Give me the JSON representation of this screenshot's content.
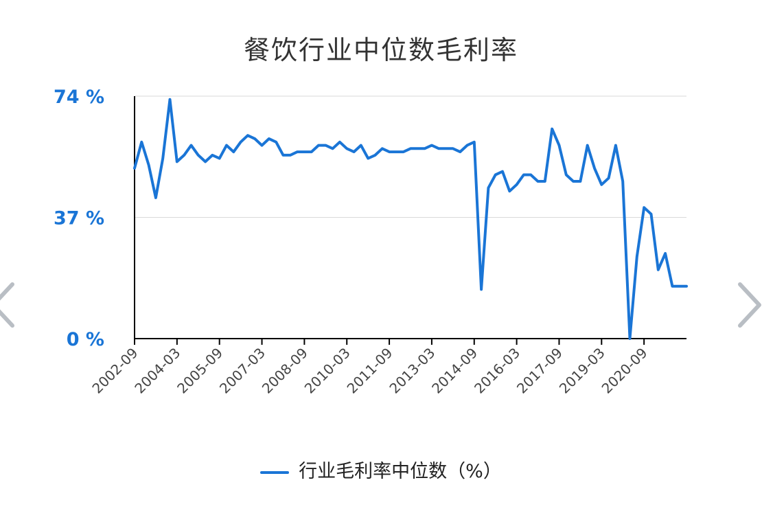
{
  "chart_data": {
    "type": "line",
    "title": "餐饮行业中位数毛利率",
    "x_ticks": [
      "2002-09",
      "2004-03",
      "2005-09",
      "2007-03",
      "2008-09",
      "2010-03",
      "2011-09",
      "2013-03",
      "2014-09",
      "2016-03",
      "2017-09",
      "2019-03",
      "2020-09"
    ],
    "y_ticks": [
      "0 %",
      "37 %",
      "74 %"
    ],
    "ylim": [
      0,
      74
    ],
    "grid": "horizontal",
    "legend_position": "bottom",
    "line_color": "#1a75d6",
    "series": [
      {
        "name": "行业毛利率中位数（%）",
        "x": [
          "2002-09",
          "2002-12",
          "2003-03",
          "2003-06",
          "2003-09",
          "2003-12",
          "2004-03",
          "2004-06",
          "2004-09",
          "2004-12",
          "2005-03",
          "2005-06",
          "2005-09",
          "2005-12",
          "2006-03",
          "2006-06",
          "2006-09",
          "2006-12",
          "2007-03",
          "2007-06",
          "2007-09",
          "2007-12",
          "2008-03",
          "2008-06",
          "2008-09",
          "2008-12",
          "2009-03",
          "2009-06",
          "2009-09",
          "2009-12",
          "2010-03",
          "2010-06",
          "2010-09",
          "2010-12",
          "2011-03",
          "2011-06",
          "2011-09",
          "2011-12",
          "2012-03",
          "2012-06",
          "2012-09",
          "2012-12",
          "2013-03",
          "2013-06",
          "2013-09",
          "2013-12",
          "2014-03",
          "2014-06",
          "2014-09",
          "2014-12",
          "2015-03",
          "2015-06",
          "2015-09",
          "2015-12",
          "2016-03",
          "2016-06",
          "2016-09",
          "2016-12",
          "2017-03",
          "2017-06",
          "2017-09",
          "2017-12",
          "2018-03",
          "2018-06",
          "2018-09",
          "2018-12",
          "2019-03",
          "2019-06",
          "2019-09",
          "2019-12",
          "2020-03",
          "2020-06",
          "2020-09",
          "2020-12",
          "2021-03",
          "2021-06",
          "2021-09",
          "2021-12",
          "2022-03"
        ],
        "values": [
          52,
          60,
          53,
          43,
          55,
          73,
          54,
          56,
          59,
          56,
          54,
          56,
          55,
          59,
          57,
          60,
          62,
          61,
          59,
          61,
          60,
          56,
          56,
          57,
          57,
          57,
          59,
          59,
          58,
          60,
          58,
          57,
          59,
          55,
          56,
          58,
          57,
          57,
          57,
          58,
          58,
          58,
          59,
          58,
          58,
          58,
          57,
          59,
          60,
          15,
          46,
          50,
          51,
          45,
          47,
          50,
          50,
          48,
          48,
          64,
          59,
          50,
          48,
          48,
          59,
          52,
          47,
          49,
          59,
          48,
          0,
          25,
          40,
          38,
          21,
          26,
          16,
          16,
          16
        ]
      }
    ]
  },
  "legend": {
    "label": "行业毛利率中位数（%）"
  },
  "nav": {
    "prev": "chevron-left-icon",
    "next": "chevron-right-icon"
  }
}
